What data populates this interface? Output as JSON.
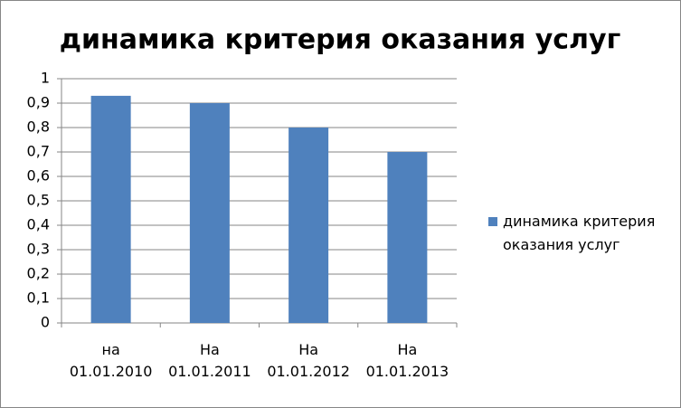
{
  "chart_data": {
    "type": "bar",
    "title": "динамика критерия оказания услуг",
    "categories": [
      "на 01.01.2010",
      "На 01.01.2011",
      "На 01.01.2012",
      "На 01.01.2013"
    ],
    "series": [
      {
        "name": "динамика критерия оказания услуг",
        "color": "#4f81bd",
        "values": [
          0.93,
          0.9,
          0.8,
          0.7
        ]
      }
    ],
    "ylim": [
      0,
      1
    ],
    "yticks": [
      0,
      {
        "value": 0.1,
        "label": "0,1"
      },
      {
        "value": 0.2,
        "label": "0,2"
      },
      {
        "value": 0.3,
        "label": "0,3"
      },
      {
        "value": 0.4,
        "label": "0,4"
      },
      {
        "value": 0.5,
        "label": "0,5"
      },
      {
        "value": 0.6,
        "label": "0,6"
      },
      {
        "value": 0.7,
        "label": "0,7"
      },
      {
        "value": 0.8,
        "label": "0,8"
      },
      {
        "value": 0.9,
        "label": "0,9"
      },
      1
    ],
    "grid": true,
    "legend": "right"
  }
}
